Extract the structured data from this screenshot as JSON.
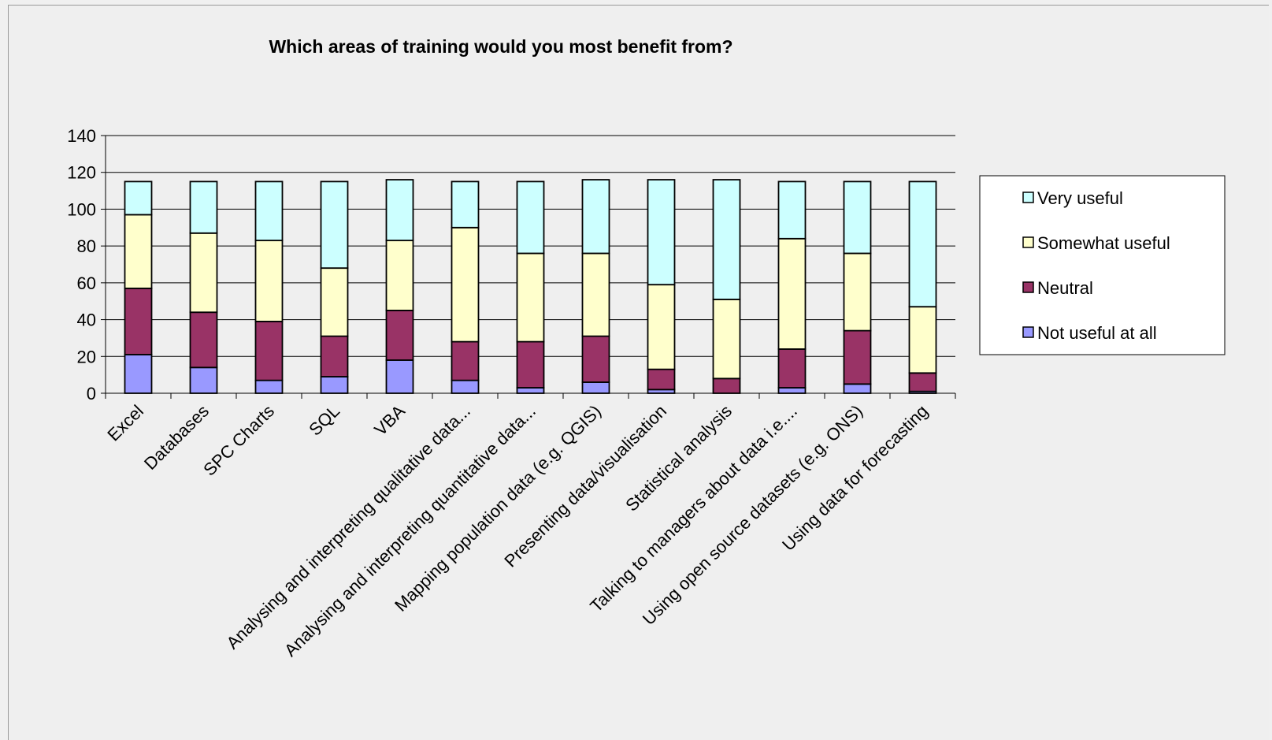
{
  "chart_data": {
    "type": "bar",
    "stacked": true,
    "title": "Which areas of training would you most benefit from?",
    "xlabel": "",
    "ylabel": "",
    "ylim": [
      0,
      140
    ],
    "yticks": [
      0,
      20,
      40,
      60,
      80,
      100,
      120,
      140
    ],
    "grid": true,
    "legend_position": "right",
    "categories": [
      "Excel",
      "Databases",
      "SPC Charts",
      "SQL",
      "VBA",
      "Analysing and interpreting qualitative data...",
      "Analysing and interpreting quantitative data...",
      "Mapping population data (e.g. QGIS)",
      "Presenting data/visualisation",
      "Statistical analysis",
      "Talking to managers about data i.e....",
      "Using open source datasets (e.g. ONS)",
      "Using data for forecasting"
    ],
    "series": [
      {
        "name": "Not useful at all",
        "color": "#9999ff",
        "values": [
          21,
          14,
          7,
          9,
          18,
          7,
          3,
          6,
          2,
          0,
          3,
          5,
          1
        ]
      },
      {
        "name": "Neutral",
        "color": "#993366",
        "values": [
          36,
          30,
          32,
          22,
          27,
          21,
          25,
          25,
          11,
          8,
          21,
          29,
          10
        ]
      },
      {
        "name": "Somewhat useful",
        "color": "#ffffcc",
        "values": [
          40,
          43,
          44,
          37,
          38,
          62,
          48,
          45,
          46,
          43,
          60,
          42,
          36
        ]
      },
      {
        "name": "Very useful",
        "color": "#ccffff",
        "values": [
          18,
          28,
          32,
          47,
          33,
          25,
          39,
          40,
          57,
          65,
          31,
          39,
          68
        ]
      }
    ]
  }
}
